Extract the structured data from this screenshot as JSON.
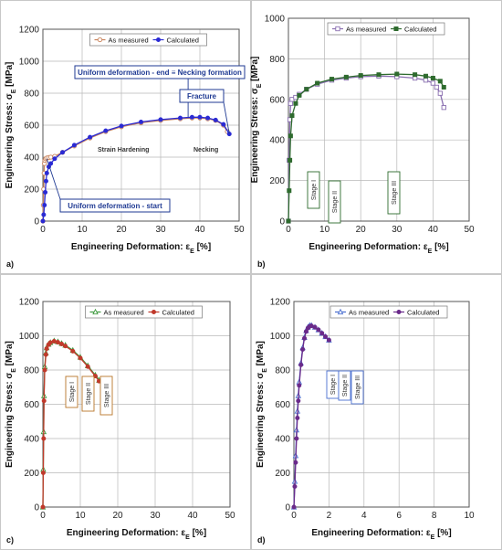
{
  "chart_data": [
    {
      "panel_label": "a)",
      "type": "line",
      "xlabel_prefix": "Engineering Deformation: ε",
      "xlabel_sub": "E",
      "xlabel_suffix": " [%]",
      "ylabel_prefix": "Engineering Stress: σ",
      "ylabel_sub": "E",
      "ylabel_suffix": " [MPa]",
      "xlim": [
        0,
        50
      ],
      "ylim": [
        0,
        1200
      ],
      "xticks": [
        0,
        10,
        20,
        30,
        40,
        50
      ],
      "yticks": [
        0,
        200,
        400,
        600,
        800,
        1000,
        1200
      ],
      "grid": true,
      "legend_position": "top",
      "series": [
        {
          "name": "As measured",
          "color": "#c8825a",
          "marker": "open-circle",
          "x": [
            0,
            0.1,
            0.2,
            0.3,
            0.4,
            0.5,
            0.7,
            1,
            1.5,
            2,
            3,
            5,
            8,
            12,
            16,
            20,
            25,
            30,
            35,
            38,
            40,
            42,
            44,
            46,
            47
          ],
          "y": [
            0,
            100,
            200,
            300,
            360,
            380,
            390,
            395,
            398,
            400,
            405,
            430,
            470,
            520,
            560,
            590,
            615,
            630,
            640,
            645,
            645,
            640,
            630,
            600,
            560
          ]
        },
        {
          "name": "Calculated",
          "color": "#2a2ad4",
          "marker": "filled-circle",
          "x": [
            0,
            0.2,
            0.4,
            0.6,
            0.8,
            1,
            1.5,
            2,
            3,
            5,
            8,
            12,
            16,
            20,
            25,
            30,
            35,
            38,
            40,
            42,
            44,
            46,
            47.5
          ],
          "y": [
            0,
            40,
            100,
            180,
            250,
            300,
            340,
            360,
            390,
            430,
            475,
            525,
            565,
            595,
            620,
            635,
            645,
            650,
            650,
            645,
            632,
            605,
            545
          ]
        }
      ],
      "annotations": [
        {
          "text": "Uniform deformation - end ≡ Necking formation",
          "style": "boxed",
          "target_x": 37,
          "target_y": 650
        },
        {
          "text": "Fracture",
          "style": "boxed",
          "target_x": 47.5,
          "target_y": 545
        },
        {
          "text": "Strain Hardening",
          "style": "plain"
        },
        {
          "text": "Necking",
          "style": "plain"
        },
        {
          "text": "Uniform deformation - start",
          "style": "boxed",
          "target_x": 1,
          "target_y": 390
        }
      ]
    },
    {
      "panel_label": "b)",
      "type": "line",
      "xlabel_prefix": "Engineering Deformation: ε",
      "xlabel_sub": "E",
      "xlabel_suffix": " [%]",
      "ylabel_prefix": "Engineering Stress: σ",
      "ylabel_sub": "E",
      "ylabel_suffix": " [MPa]",
      "xlim": [
        0,
        50
      ],
      "ylim": [
        0,
        1000
      ],
      "xticks": [
        0,
        10,
        20,
        30,
        40,
        50
      ],
      "yticks": [
        0,
        200,
        400,
        600,
        800,
        1000
      ],
      "grid": true,
      "legend_position": "top",
      "series": [
        {
          "name": "As measured",
          "color": "#8a6fb0",
          "marker": "open-square",
          "x": [
            0,
            0.2,
            0.4,
            0.6,
            1,
            2,
            3,
            5,
            8,
            12,
            16,
            20,
            25,
            30,
            35,
            38,
            40,
            41,
            42,
            43
          ],
          "y": [
            0,
            300,
            500,
            580,
            600,
            610,
            625,
            650,
            675,
            695,
            705,
            712,
            715,
            712,
            705,
            695,
            680,
            660,
            630,
            560
          ]
        },
        {
          "name": "Calculated",
          "color": "#2e6b2e",
          "marker": "filled-square",
          "x": [
            0,
            0.2,
            0.4,
            0.6,
            1,
            2,
            3,
            5,
            8,
            12,
            16,
            20,
            25,
            30,
            35,
            38,
            40,
            42,
            43
          ],
          "y": [
            0,
            150,
            300,
            420,
            520,
            580,
            620,
            650,
            680,
            700,
            710,
            718,
            722,
            725,
            722,
            715,
            705,
            690,
            660
          ]
        }
      ],
      "annotations": [
        {
          "text": "Stage I",
          "style": "boxed-vertical"
        },
        {
          "text": "Stage II",
          "style": "boxed-vertical"
        },
        {
          "text": "Stage III",
          "style": "boxed-vertical"
        }
      ]
    },
    {
      "panel_label": "c)",
      "type": "line",
      "xlabel_prefix": "Engineering Deformation: ε",
      "xlabel_sub": "E",
      "xlabel_suffix": " [%]",
      "ylabel_prefix": "Engineering Stress: σ",
      "ylabel_sub": "E",
      "ylabel_suffix": " [MPa]",
      "xlim": [
        0,
        50
      ],
      "ylim": [
        0,
        1200
      ],
      "xticks": [
        0,
        10,
        20,
        30,
        40,
        50
      ],
      "yticks": [
        0,
        200,
        400,
        600,
        800,
        1000,
        1200
      ],
      "grid": true,
      "legend_position": "top",
      "series": [
        {
          "name": "As measured",
          "color": "#3f9a3f",
          "marker": "open-triangle",
          "x": [
            0,
            0.1,
            0.2,
            0.3,
            0.5,
            0.8,
            1,
            1.5,
            2,
            3,
            4,
            5,
            6,
            8,
            10,
            12,
            14,
            15,
            16,
            17
          ],
          "y": [
            0,
            220,
            440,
            650,
            820,
            900,
            930,
            950,
            960,
            970,
            965,
            955,
            945,
            915,
            875,
            825,
            770,
            740,
            710,
            680
          ]
        },
        {
          "name": "Calculated",
          "color": "#c0392b",
          "marker": "filled-circle",
          "x": [
            0,
            0.1,
            0.2,
            0.3,
            0.5,
            0.8,
            1,
            1.5,
            2,
            3,
            4,
            5,
            6,
            8,
            10,
            12,
            14,
            15,
            16,
            17
          ],
          "y": [
            0,
            200,
            400,
            620,
            800,
            890,
            925,
            948,
            960,
            968,
            962,
            952,
            940,
            910,
            870,
            820,
            765,
            735,
            705,
            670
          ]
        }
      ],
      "annotations": [
        {
          "text": "Stage I",
          "style": "boxed-vertical"
        },
        {
          "text": "Stage II",
          "style": "boxed-vertical"
        },
        {
          "text": "Stage III",
          "style": "boxed-vertical"
        }
      ]
    },
    {
      "panel_label": "d)",
      "type": "line",
      "xlabel_prefix": "Engineering Deformation: ε",
      "xlabel_sub": "E",
      "xlabel_suffix": " [%]",
      "ylabel_prefix": "Engineering Stress: σ",
      "ylabel_sub": "E",
      "ylabel_suffix": " [MPa]",
      "xlim": [
        0,
        10
      ],
      "ylim": [
        0,
        1200
      ],
      "xticks": [
        0,
        2,
        4,
        6,
        8,
        10
      ],
      "yticks": [
        0,
        200,
        400,
        600,
        800,
        1000,
        1200
      ],
      "grid": true,
      "legend_position": "top",
      "series": [
        {
          "name": "As measured",
          "color": "#4a6fd0",
          "marker": "open-triangle",
          "x": [
            0,
            0.05,
            0.1,
            0.15,
            0.2,
            0.25,
            0.3,
            0.4,
            0.5,
            0.6,
            0.7,
            0.8,
            0.9,
            1,
            1.2,
            1.4,
            1.6,
            1.8,
            2
          ],
          "y": [
            0,
            150,
            300,
            450,
            560,
            650,
            730,
            840,
            930,
            990,
            1030,
            1050,
            1060,
            1060,
            1050,
            1035,
            1015,
            995,
            975
          ]
        },
        {
          "name": "Calculated",
          "color": "#6a2a8a",
          "marker": "filled-circle",
          "x": [
            0,
            0.05,
            0.1,
            0.15,
            0.2,
            0.25,
            0.3,
            0.4,
            0.5,
            0.6,
            0.7,
            0.8,
            0.9,
            1,
            1.2,
            1.4,
            1.6,
            1.8,
            2
          ],
          "y": [
            0,
            120,
            260,
            400,
            520,
            620,
            710,
            830,
            920,
            985,
            1025,
            1045,
            1055,
            1058,
            1050,
            1035,
            1015,
            995,
            975
          ]
        }
      ],
      "annotations": [
        {
          "text": "Stage I",
          "style": "boxed-vertical"
        },
        {
          "text": "Stage II",
          "style": "boxed-vertical"
        },
        {
          "text": "Stage III",
          "style": "boxed-vertical"
        }
      ]
    }
  ]
}
